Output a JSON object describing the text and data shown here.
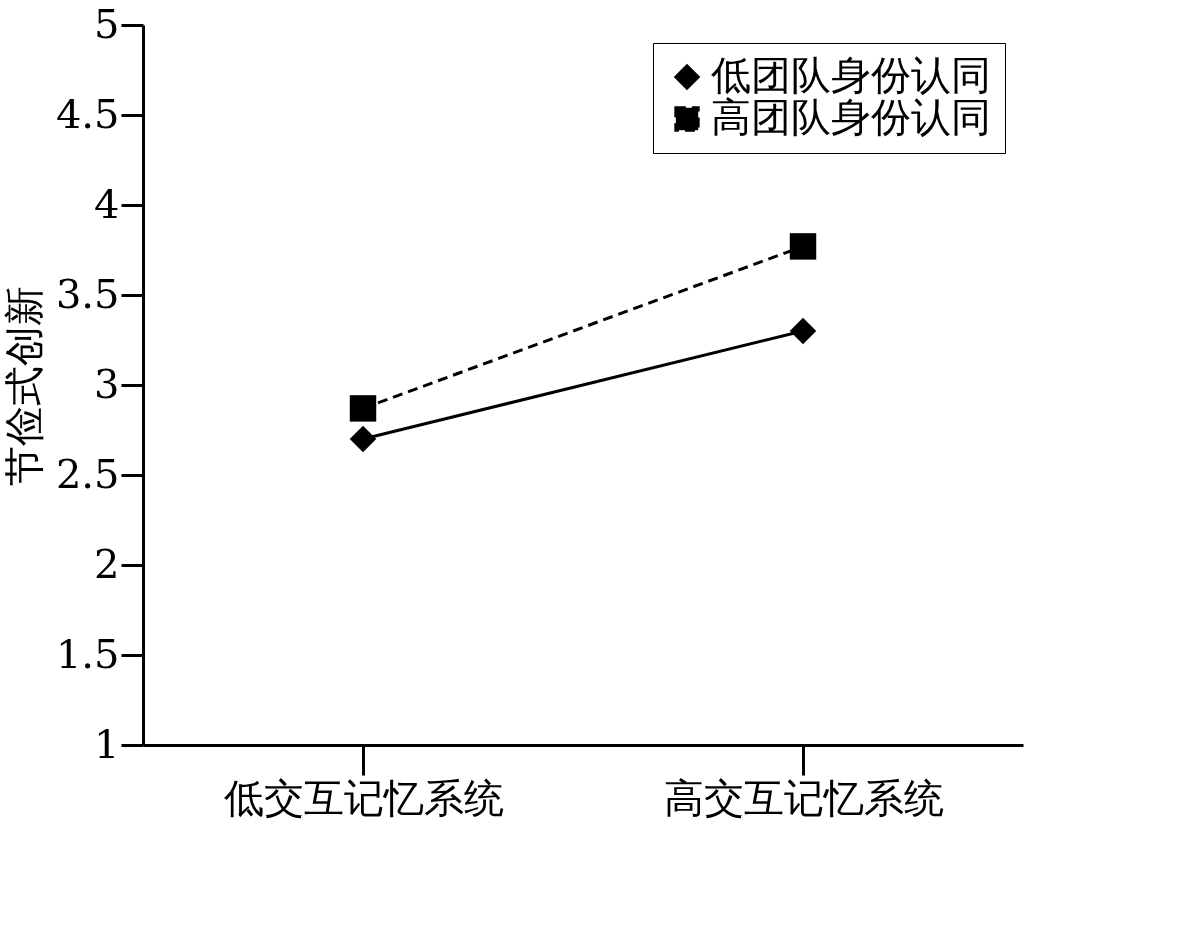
{
  "chart_data": {
    "type": "line",
    "ylabel": "节俭式创新",
    "categories": [
      "低交互记忆系统",
      "高交互记忆系统"
    ],
    "series": [
      {
        "name": "低团队身份认同",
        "color": "#000000",
        "values": [
          2.7,
          3.3
        ],
        "marker": "diamond",
        "line_style": "solid"
      },
      {
        "name": "高团队身份认同",
        "color": "#000000",
        "values": [
          2.87,
          3.77
        ],
        "marker": "square",
        "line_style": "dashed"
      }
    ],
    "ylim": [
      1,
      5
    ],
    "yticks": [
      1,
      1.5,
      2,
      2.5,
      3,
      3.5,
      4,
      4.5,
      5
    ],
    "grid": false,
    "legend": "top right"
  }
}
